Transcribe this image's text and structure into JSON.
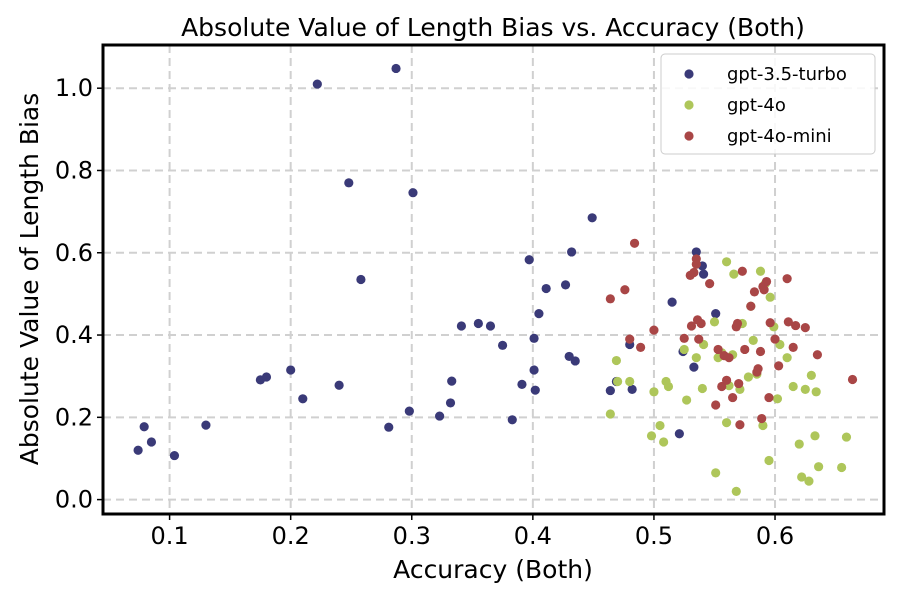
{
  "chart_data": {
    "type": "scatter",
    "title": "Absolute Value of Length Bias vs. Accuracy (Both)",
    "xlabel": "Accuracy (Both)",
    "ylabel": "Absolute Value of Length Bias",
    "xlim": [
      0.045,
      0.69
    ],
    "ylim": [
      -0.035,
      1.105
    ],
    "xticks": [
      0.1,
      0.2,
      0.3,
      0.4,
      0.5,
      0.6
    ],
    "xtick_labels": [
      "0.1",
      "0.2",
      "0.3",
      "0.4",
      "0.5",
      "0.6"
    ],
    "yticks": [
      0.0,
      0.2,
      0.4,
      0.6,
      0.8,
      1.0
    ],
    "ytick_labels": [
      "0.0",
      "0.2",
      "0.4",
      "0.6",
      "0.8",
      "1.0"
    ],
    "grid": true,
    "legend_position": "top-right",
    "series": [
      {
        "name": "gpt-3.5-turbo",
        "color": "#3a3a78",
        "points": [
          [
            0.074,
            0.12
          ],
          [
            0.079,
            0.177
          ],
          [
            0.085,
            0.14
          ],
          [
            0.104,
            0.107
          ],
          [
            0.13,
            0.181
          ],
          [
            0.175,
            0.291
          ],
          [
            0.18,
            0.298
          ],
          [
            0.2,
            0.315
          ],
          [
            0.21,
            0.245
          ],
          [
            0.222,
            1.01
          ],
          [
            0.24,
            0.278
          ],
          [
            0.248,
            0.77
          ],
          [
            0.258,
            0.535
          ],
          [
            0.281,
            0.176
          ],
          [
            0.287,
            1.048
          ],
          [
            0.298,
            0.215
          ],
          [
            0.301,
            0.746
          ],
          [
            0.323,
            0.203
          ],
          [
            0.332,
            0.235
          ],
          [
            0.333,
            0.288
          ],
          [
            0.341,
            0.422
          ],
          [
            0.355,
            0.428
          ],
          [
            0.365,
            0.422
          ],
          [
            0.375,
            0.375
          ],
          [
            0.383,
            0.194
          ],
          [
            0.391,
            0.28
          ],
          [
            0.397,
            0.583
          ],
          [
            0.401,
            0.392
          ],
          [
            0.401,
            0.315
          ],
          [
            0.402,
            0.266
          ],
          [
            0.405,
            0.452
          ],
          [
            0.411,
            0.513
          ],
          [
            0.427,
            0.522
          ],
          [
            0.43,
            0.348
          ],
          [
            0.432,
            0.602
          ],
          [
            0.435,
            0.337
          ],
          [
            0.449,
            0.685
          ],
          [
            0.464,
            0.265
          ],
          [
            0.469,
            0.287
          ],
          [
            0.48,
            0.377
          ],
          [
            0.482,
            0.268
          ],
          [
            0.515,
            0.48
          ],
          [
            0.521,
            0.16
          ],
          [
            0.524,
            0.36
          ],
          [
            0.533,
            0.322
          ],
          [
            0.535,
            0.602
          ],
          [
            0.54,
            0.568
          ],
          [
            0.541,
            0.548
          ],
          [
            0.551,
            0.452
          ]
        ]
      },
      {
        "name": "gpt-4o",
        "color": "#aec65a",
        "points": [
          [
            0.464,
            0.208
          ],
          [
            0.469,
            0.338
          ],
          [
            0.47,
            0.287
          ],
          [
            0.48,
            0.287
          ],
          [
            0.498,
            0.155
          ],
          [
            0.5,
            0.262
          ],
          [
            0.505,
            0.18
          ],
          [
            0.508,
            0.14
          ],
          [
            0.51,
            0.287
          ],
          [
            0.512,
            0.275
          ],
          [
            0.525,
            0.365
          ],
          [
            0.527,
            0.242
          ],
          [
            0.535,
            0.345
          ],
          [
            0.54,
            0.27
          ],
          [
            0.541,
            0.377
          ],
          [
            0.55,
            0.432
          ],
          [
            0.551,
            0.065
          ],
          [
            0.553,
            0.345
          ],
          [
            0.556,
            0.357
          ],
          [
            0.56,
            0.578
          ],
          [
            0.56,
            0.187
          ],
          [
            0.562,
            0.277
          ],
          [
            0.565,
            0.352
          ],
          [
            0.566,
            0.548
          ],
          [
            0.568,
            0.02
          ],
          [
            0.571,
            0.268
          ],
          [
            0.573,
            0.428
          ],
          [
            0.578,
            0.298
          ],
          [
            0.58,
            0.47
          ],
          [
            0.582,
            0.387
          ],
          [
            0.585,
            0.305
          ],
          [
            0.588,
            0.555
          ],
          [
            0.59,
            0.18
          ],
          [
            0.592,
            0.525
          ],
          [
            0.595,
            0.095
          ],
          [
            0.596,
            0.492
          ],
          [
            0.599,
            0.42
          ],
          [
            0.602,
            0.245
          ],
          [
            0.604,
            0.377
          ],
          [
            0.61,
            0.345
          ],
          [
            0.615,
            0.275
          ],
          [
            0.62,
            0.135
          ],
          [
            0.622,
            0.055
          ],
          [
            0.625,
            0.268
          ],
          [
            0.628,
            0.045
          ],
          [
            0.63,
            0.302
          ],
          [
            0.633,
            0.155
          ],
          [
            0.634,
            0.262
          ],
          [
            0.636,
            0.08
          ],
          [
            0.655,
            0.078
          ],
          [
            0.659,
            0.152
          ]
        ]
      },
      {
        "name": "gpt-4o-mini",
        "color": "#a94646",
        "points": [
          [
            0.464,
            0.488
          ],
          [
            0.476,
            0.51
          ],
          [
            0.48,
            0.39
          ],
          [
            0.484,
            0.623
          ],
          [
            0.489,
            0.37
          ],
          [
            0.5,
            0.412
          ],
          [
            0.525,
            0.392
          ],
          [
            0.53,
            0.545
          ],
          [
            0.531,
            0.422
          ],
          [
            0.533,
            0.552
          ],
          [
            0.535,
            0.585
          ],
          [
            0.535,
            0.572
          ],
          [
            0.536,
            0.437
          ],
          [
            0.537,
            0.39
          ],
          [
            0.539,
            0.428
          ],
          [
            0.546,
            0.525
          ],
          [
            0.551,
            0.23
          ],
          [
            0.553,
            0.365
          ],
          [
            0.556,
            0.275
          ],
          [
            0.558,
            0.35
          ],
          [
            0.56,
            0.29
          ],
          [
            0.562,
            0.345
          ],
          [
            0.565,
            0.248
          ],
          [
            0.568,
            0.42
          ],
          [
            0.569,
            0.428
          ],
          [
            0.57,
            0.282
          ],
          [
            0.571,
            0.182
          ],
          [
            0.573,
            0.555
          ],
          [
            0.575,
            0.365
          ],
          [
            0.58,
            0.47
          ],
          [
            0.583,
            0.505
          ],
          [
            0.585,
            0.31
          ],
          [
            0.586,
            0.318
          ],
          [
            0.588,
            0.36
          ],
          [
            0.589,
            0.197
          ],
          [
            0.59,
            0.518
          ],
          [
            0.591,
            0.51
          ],
          [
            0.593,
            0.53
          ],
          [
            0.595,
            0.248
          ],
          [
            0.596,
            0.43
          ],
          [
            0.6,
            0.39
          ],
          [
            0.603,
            0.325
          ],
          [
            0.61,
            0.537
          ],
          [
            0.611,
            0.432
          ],
          [
            0.615,
            0.37
          ],
          [
            0.617,
            0.423
          ],
          [
            0.625,
            0.418
          ],
          [
            0.635,
            0.352
          ],
          [
            0.664,
            0.292
          ]
        ]
      }
    ]
  }
}
